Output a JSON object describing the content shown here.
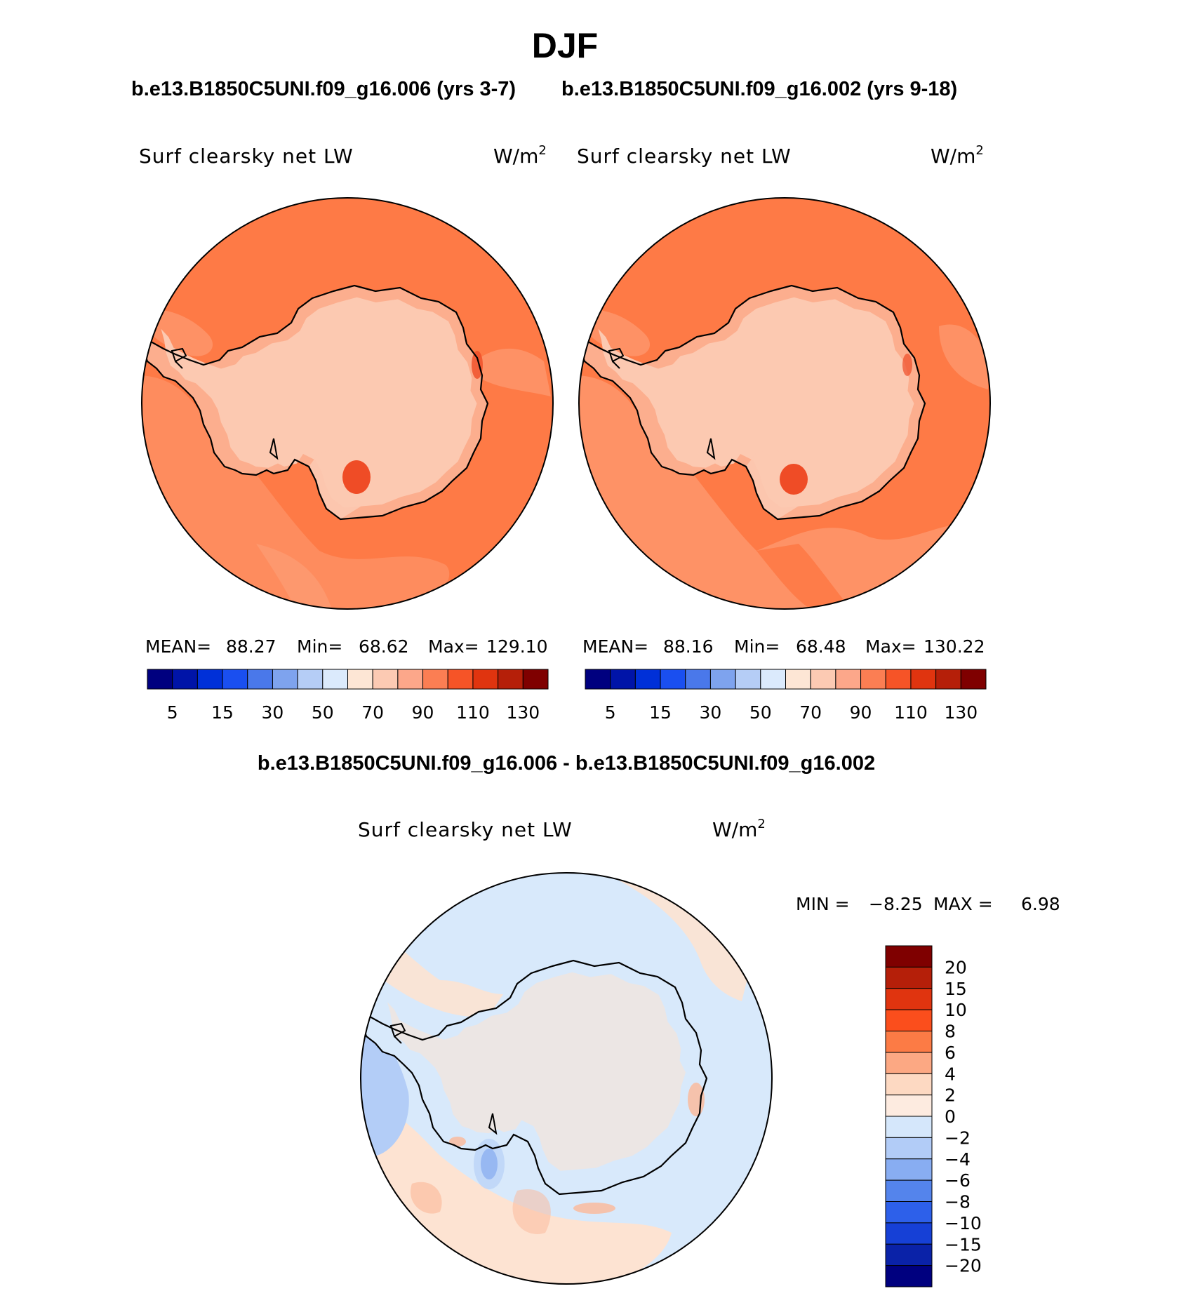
{
  "page_title": "DJF",
  "subtitle_left": "b.e13.B1850C5UNI.f09_g16.006 (yrs 3-7)",
  "subtitle_right": "b.e13.B1850C5UNI.f09_g16.002 (yrs 9-18)",
  "colors": {
    "ocean_main": "#fe7a46",
    "ocean_light": "#fd9b72",
    "coast": "#fcae8e",
    "interior": "#fcc9b1",
    "hot": "#ef4c26",
    "diff_base": "#d8e9fb",
    "diff_pos": "#fde3d2",
    "diff_pos2": "#fcb898",
    "diff_neg": "#b3cdf7",
    "diff_neg2": "#6e98ec"
  },
  "chart_data": [
    {
      "type": "heatmap",
      "projection": "south-polar",
      "case": "b.e13.B1850C5UNI.f09_g16.006 (yrs 3-7)",
      "variable_label": "Surf clearsky net LW",
      "units_label": "W/m",
      "units_sup": "2",
      "stats": {
        "mean_label": "MEAN=",
        "mean": "88.27",
        "min_label": "Min=",
        "min": "68.62",
        "max_label": "Max=",
        "max": "129.10"
      },
      "colorbar": {
        "orientation": "horizontal",
        "colors": [
          "#00007f",
          "#0014a8",
          "#0030d8",
          "#1a4ff0",
          "#4a78ea",
          "#7ea3ee",
          "#b5cdf6",
          "#dbeafc",
          "#fde6d5",
          "#fccab3",
          "#fca78a",
          "#fb7e53",
          "#f65427",
          "#e0340f",
          "#b51f09",
          "#7f0000"
        ],
        "tick_labels": [
          "5",
          "15",
          "30",
          "50",
          "70",
          "90",
          "110",
          "130"
        ]
      }
    },
    {
      "type": "heatmap",
      "projection": "south-polar",
      "case": "b.e13.B1850C5UNI.f09_g16.002 (yrs 9-18)",
      "variable_label": "Surf clearsky net LW",
      "units_label": "W/m",
      "units_sup": "2",
      "stats": {
        "mean_label": "MEAN=",
        "mean": "88.16",
        "min_label": "Min=",
        "min": "68.48",
        "max_label": "Max=",
        "max": "130.22"
      },
      "colorbar": {
        "orientation": "horizontal",
        "colors": [
          "#00007f",
          "#0014a8",
          "#0030d8",
          "#1a4ff0",
          "#4a78ea",
          "#7ea3ee",
          "#b5cdf6",
          "#dbeafc",
          "#fde6d5",
          "#fccab3",
          "#fca78a",
          "#fb7e53",
          "#f65427",
          "#e0340f",
          "#b51f09",
          "#7f0000"
        ],
        "tick_labels": [
          "5",
          "15",
          "30",
          "50",
          "70",
          "90",
          "110",
          "130"
        ]
      }
    },
    {
      "type": "heatmap",
      "projection": "south-polar",
      "title": "b.e13.B1850C5UNI.f09_g16.006 - b.e13.B1850C5UNI.f09_g16.002",
      "variable_label": "Surf clearsky net LW",
      "units_label": "W/m",
      "units_sup": "2",
      "stats": {
        "min_label": "MIN =",
        "min": "−8.25",
        "max_label": "MAX =",
        "max": "6.98"
      },
      "colorbar": {
        "orientation": "vertical",
        "colors_top_to_bottom": [
          "#7f0000",
          "#b51f09",
          "#e0340f",
          "#fb4e1c",
          "#fc7b45",
          "#fca883",
          "#fdd9c2",
          "#fdebe0",
          "#d5e7fb",
          "#b2ccf7",
          "#88adf2",
          "#5484ec",
          "#2d60ea",
          "#1640d6",
          "#0a22a8",
          "#00007f"
        ],
        "tick_labels": [
          "20",
          "15",
          "10",
          "8",
          "6",
          "4",
          "2",
          "0",
          "−2",
          "−4",
          "−6",
          "−8",
          "−10",
          "−15",
          "−20"
        ]
      }
    }
  ]
}
